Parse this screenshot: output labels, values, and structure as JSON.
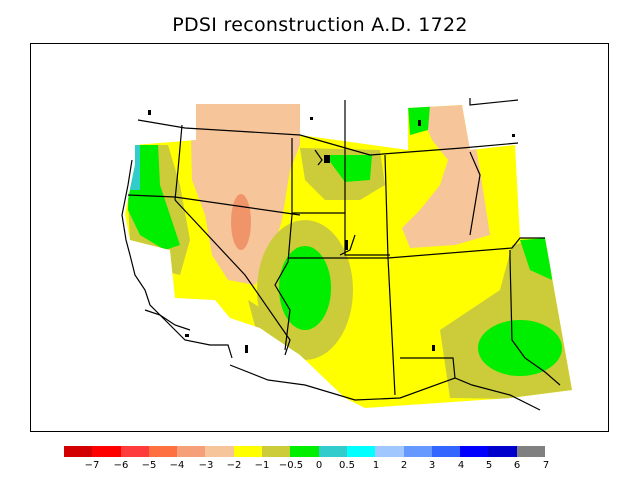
{
  "title": "PDSI reconstruction A.D. 1722",
  "map": {
    "year": 1722,
    "index": "PDSI",
    "region_fill_colors": {
      "moderate_dry": "#f6c59a",
      "severe_dry": "#f0956a",
      "near_normal_dry": "#ffff00",
      "slight_dry": "#cccc3a",
      "near_normal_wet": "#00ee00",
      "wet_teal": "#33cccc"
    }
  },
  "colorbar": {
    "colors": [
      "#d20000",
      "#ff0000",
      "#ff3c3c",
      "#ff7040",
      "#f6a07a",
      "#f6c59a",
      "#ffff00",
      "#cccc3a",
      "#00ee00",
      "#33cccc",
      "#00ffff",
      "#a0c8ff",
      "#6699ff",
      "#3366ff",
      "#0000ff",
      "#0000cc",
      "#808080"
    ],
    "labels": [
      "−7",
      "−6",
      "−5",
      "−4",
      "−3",
      "−2",
      "−1",
      "−0.5",
      "0",
      "0.5",
      "1",
      "2",
      "3",
      "4",
      "5",
      "6",
      "7"
    ]
  }
}
